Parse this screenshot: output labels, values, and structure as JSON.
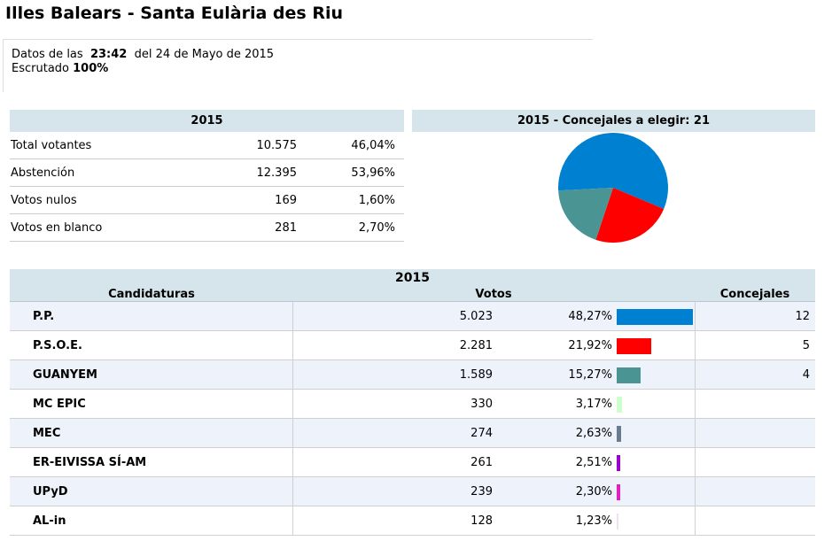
{
  "header": {
    "title": "Illes Balears - Santa Eulària des Riu"
  },
  "info": {
    "data_label": "Datos de las",
    "time": "23:42",
    "date": "del 24 de Mayo de 2015",
    "scrutiny_label": "Escrutado",
    "scrutiny": "100%"
  },
  "summary": {
    "title": "2015",
    "rows": [
      [
        "Total votantes",
        "10.575",
        "46,04%"
      ],
      [
        "Abstención",
        "12.395",
        "53,96%"
      ],
      [
        "Votos nulos",
        "169",
        "1,60%"
      ],
      [
        "Votos en blanco",
        "281",
        "2,70%"
      ]
    ]
  },
  "seats_chart": {
    "title": "2015 - Concejales a elegir: 21"
  },
  "results": {
    "title": "2015",
    "columns": [
      "Candidaturas",
      "Votos",
      "Concejales"
    ],
    "rows": [
      {
        "name": "P.P.",
        "votes": "5.023",
        "percent": 48.27,
        "percent_label": "48,27%",
        "color": "#0080d0",
        "seats": 12
      },
      {
        "name": "P.S.O.E.",
        "votes": "2.281",
        "percent": 21.92,
        "percent_label": "21,92%",
        "color": "#ff0000",
        "seats": 5
      },
      {
        "name": "GUANYEM",
        "votes": "1.589",
        "percent": 15.27,
        "percent_label": "15,27%",
        "color": "#4a9494",
        "seats": 4
      },
      {
        "name": "MC EPIC",
        "votes": "330",
        "percent": 3.17,
        "percent_label": "3,17%",
        "color": "#ccffcc"
      },
      {
        "name": "MEC",
        "votes": "274",
        "percent": 2.63,
        "percent_label": "2,63%",
        "color": "#6a7a90"
      },
      {
        "name": "ER-EIVISSA SÍ-AM",
        "votes": "261",
        "percent": 2.51,
        "percent_label": "2,51%",
        "color": "#9900cc"
      },
      {
        "name": "UPyD",
        "votes": "239",
        "percent": 2.3,
        "percent_label": "2,30%",
        "color": "#e020c0"
      },
      {
        "name": "AL-in",
        "votes": "128",
        "percent": 1.23,
        "percent_label": "1,23%",
        "color": "#f0e0f0"
      }
    ]
  }
}
